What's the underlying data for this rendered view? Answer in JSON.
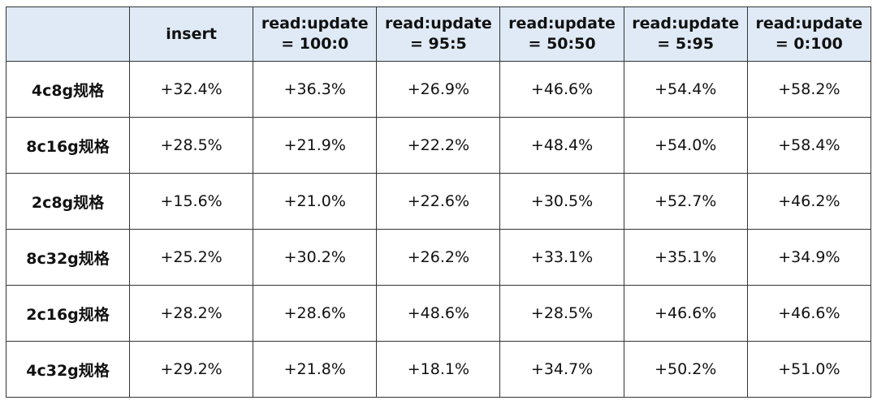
{
  "table": {
    "header": [
      "insert",
      "read:update = 100:0",
      "read:update = 95:5",
      "read:update = 50:50",
      "read:update = 5:95",
      "read:update = 0:100"
    ],
    "rows": [
      [
        "4c8g规格",
        "+32.4%",
        "+36.3%",
        "+26.9%",
        "+46.6%",
        "+54.4%",
        "+58.2%"
      ],
      [
        "8c16g规格",
        "+28.5%",
        "+21.9%",
        "+22.2%",
        "+48.4%",
        "+54.0%",
        "+58.4%"
      ],
      [
        "2c8g规格",
        "+15.6%",
        "+21.0%",
        "+22.6%",
        "+30.5%",
        "+52.7%",
        "+46.2%"
      ],
      [
        "8c32g规格",
        "+25.2%",
        "+30.2%",
        "+26.2%",
        "+33.1%",
        "+35.1%",
        "+34.9%"
      ],
      [
        "2c16g规格",
        "+28.2%",
        "+28.6%",
        "+48.6%",
        "+28.5%",
        "+46.6%",
        "+46.6%"
      ],
      [
        "4c32g规格",
        "+29.2%",
        "+21.8%",
        "+18.1%",
        "+34.7%",
        "+50.2%",
        "+51.0%"
      ]
    ]
  }
}
